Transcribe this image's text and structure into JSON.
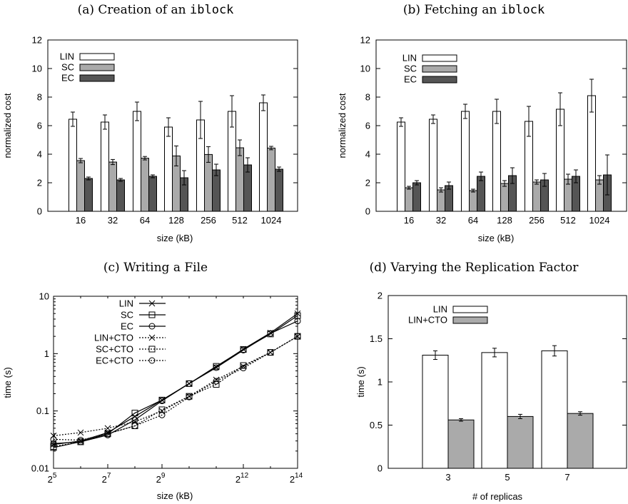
{
  "colors": {
    "white_bar": "#ffffff",
    "gray_bar": "#aaaaaa",
    "dark_bar": "#555555",
    "ink": "#000000"
  },
  "chart_data": [
    {
      "type": "bar",
      "title_prefix": "(a) Creation of an ",
      "title_code": "iblock",
      "categories": [
        "16",
        "32",
        "64",
        "128",
        "256",
        "512",
        "1024"
      ],
      "xlabel": "size (kB)",
      "ylabel": "normalized cost",
      "ylim": [
        0,
        12
      ],
      "yticks": [
        "0",
        "2",
        "4",
        "6",
        "8",
        "10",
        "12"
      ],
      "legend_position": "top-left",
      "series": [
        {
          "name": "LIN",
          "values": [
            6.45,
            6.25,
            7.0,
            5.9,
            6.4,
            7.0,
            7.6
          ],
          "err": [
            0.5,
            0.5,
            0.65,
            0.65,
            1.3,
            1.1,
            0.55
          ]
        },
        {
          "name": "SC",
          "values": [
            3.55,
            3.45,
            3.72,
            3.88,
            3.98,
            4.45,
            4.43
          ],
          "err": [
            0.15,
            0.18,
            0.12,
            0.7,
            0.55,
            0.55,
            0.12
          ]
        },
        {
          "name": "EC",
          "values": [
            2.3,
            2.2,
            2.45,
            2.35,
            2.9,
            3.25,
            2.95
          ],
          "err": [
            0.1,
            0.1,
            0.1,
            0.5,
            0.4,
            0.5,
            0.15
          ]
        }
      ]
    },
    {
      "type": "bar",
      "title_prefix": "(b) Fetching an ",
      "title_code": "iblock",
      "categories": [
        "16",
        "32",
        "64",
        "128",
        "256",
        "512",
        "1024"
      ],
      "xlabel": "size (kB)",
      "ylabel": "normalized cost",
      "ylim": [
        0,
        12
      ],
      "yticks": [
        "0",
        "2",
        "4",
        "6",
        "8",
        "10",
        "12"
      ],
      "legend_position": "top-left",
      "series": [
        {
          "name": "LIN",
          "values": [
            6.25,
            6.45,
            7.0,
            7.0,
            6.3,
            7.15,
            8.1
          ],
          "err": [
            0.3,
            0.3,
            0.5,
            0.85,
            1.05,
            1.15,
            1.15
          ]
        },
        {
          "name": "SC",
          "values": [
            1.65,
            1.5,
            1.45,
            1.95,
            2.05,
            2.25,
            2.2
          ],
          "err": [
            0.1,
            0.15,
            0.1,
            0.2,
            0.15,
            0.35,
            0.3
          ]
        },
        {
          "name": "EC",
          "values": [
            2.0,
            1.8,
            2.45,
            2.5,
            2.2,
            2.45,
            2.55
          ],
          "err": [
            0.15,
            0.25,
            0.3,
            0.55,
            0.45,
            0.45,
            1.4
          ]
        }
      ]
    },
    {
      "type": "line",
      "title": "(c) Writing a File",
      "xlabel": "size (kB)",
      "ylabel": "time (s)",
      "x_scale": "log2",
      "y_scale": "log10",
      "xlim": [
        32,
        16384
      ],
      "ylim": [
        0.01,
        10
      ],
      "xticks": [
        {
          "base": "2",
          "exp": "5",
          "value": 32
        },
        {
          "base": "2",
          "exp": "7",
          "value": 128
        },
        {
          "base": "2",
          "exp": "9",
          "value": 512
        },
        {
          "base": "2",
          "exp": "12",
          "value": 4096
        },
        {
          "base": "2",
          "exp": "14",
          "value": 16384
        }
      ],
      "yticks": [
        {
          "label": "0.01",
          "value": 0.01
        },
        {
          "label": "0.1",
          "value": 0.1
        },
        {
          "label": "1",
          "value": 1
        },
        {
          "label": "10",
          "value": 10
        }
      ],
      "legend_position": "top-left",
      "x": [
        32,
        64,
        128,
        256,
        512,
        1024,
        2048,
        4096,
        8192,
        16384
      ],
      "series": [
        {
          "name": "LIN",
          "marker": "x",
          "dash": "solid",
          "values": [
            0.026,
            0.03,
            0.042,
            0.08,
            0.155,
            0.3,
            0.58,
            1.2,
            2.3,
            5.0
          ]
        },
        {
          "name": "SC",
          "marker": "square",
          "dash": "solid",
          "values": [
            0.023,
            0.029,
            0.04,
            0.092,
            0.155,
            0.3,
            0.6,
            1.18,
            2.2,
            4.6
          ]
        },
        {
          "name": "EC",
          "marker": "circle",
          "dash": "solid",
          "values": [
            0.027,
            0.029,
            0.038,
            0.07,
            0.15,
            0.3,
            0.57,
            1.15,
            2.25,
            3.7
          ]
        },
        {
          "name": "LIN+CTO",
          "marker": "x",
          "dash": "dotted",
          "values": [
            0.037,
            0.042,
            0.05,
            0.065,
            0.1,
            0.18,
            0.35,
            0.6,
            1.05,
            2.0
          ]
        },
        {
          "name": "SC+CTO",
          "marker": "square",
          "dash": "dotted",
          "values": [
            0.024,
            0.029,
            0.04,
            0.055,
            0.105,
            0.18,
            0.29,
            0.62,
            1.05,
            2.0
          ]
        },
        {
          "name": "EC+CTO",
          "marker": "circle",
          "dash": "dotted",
          "values": [
            0.032,
            0.031,
            0.04,
            0.055,
            0.085,
            0.175,
            0.33,
            0.56,
            1.05,
            2.0
          ]
        }
      ]
    },
    {
      "type": "bar",
      "title": "(d) Varying the Replication Factor",
      "categories": [
        "3",
        "5",
        "7"
      ],
      "xlabel": "# of replicas",
      "ylabel": "time (s)",
      "ylim": [
        0,
        2
      ],
      "yticks": [
        "0",
        "0.5",
        "1",
        "1.5",
        "2"
      ],
      "legend_position": "top-left",
      "series": [
        {
          "name": "LIN",
          "values": [
            1.31,
            1.34,
            1.36
          ],
          "err": [
            0.05,
            0.05,
            0.06
          ]
        },
        {
          "name": "LIN+CTO",
          "values": [
            0.56,
            0.6,
            0.635
          ],
          "err": [
            0.015,
            0.025,
            0.02
          ]
        }
      ]
    }
  ]
}
